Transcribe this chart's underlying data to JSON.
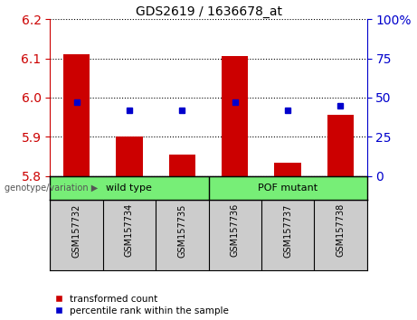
{
  "title": "GDS2619 / 1636678_at",
  "samples": [
    "GSM157732",
    "GSM157734",
    "GSM157735",
    "GSM157736",
    "GSM157737",
    "GSM157738"
  ],
  "red_values": [
    6.11,
    5.9,
    5.855,
    6.105,
    5.835,
    5.955
  ],
  "blue_values": [
    47,
    42,
    42,
    47,
    42,
    45
  ],
  "ylim_left": [
    5.8,
    6.2
  ],
  "ylim_right": [
    0,
    100
  ],
  "yticks_left": [
    5.8,
    5.9,
    6.0,
    6.1,
    6.2
  ],
  "yticks_right": [
    0,
    25,
    50,
    75,
    100
  ],
  "ytick_labels_right": [
    "0",
    "25",
    "50",
    "75",
    "100%"
  ],
  "left_axis_color": "#cc0000",
  "right_axis_color": "#0000cc",
  "bar_color": "#cc0000",
  "square_color": "#0000cc",
  "group1_label": "wild type",
  "group2_label": "POF mutant",
  "group1_indices": [
    0,
    1,
    2
  ],
  "group2_indices": [
    3,
    4,
    5
  ],
  "group_bar_color": "#77ee77",
  "label_bg_color": "#cccccc",
  "genotype_label": "genotype/variation",
  "legend_items": [
    "transformed count",
    "percentile rank within the sample"
  ],
  "base_value": 5.8,
  "bar_width": 0.5
}
